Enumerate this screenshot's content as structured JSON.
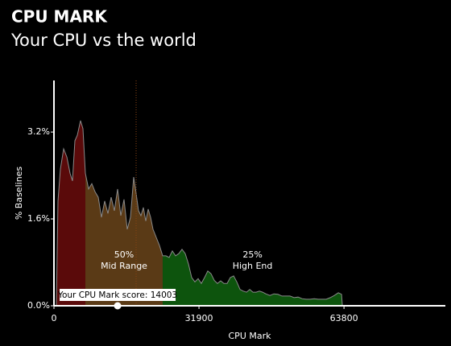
{
  "chart_data": {
    "type": "area",
    "title": "CPU MARK",
    "subtitle": "Your CPU vs the world",
    "x_label": "CPU Mark",
    "y_label": "% Baselines",
    "x": [
      532,
      886,
      1418,
      2126,
      2835,
      3544,
      4076,
      4607,
      5139,
      5848,
      6379,
      6911,
      7620,
      8328,
      9037,
      9746,
      10455,
      11164,
      11872,
      12581,
      13290,
      13999,
      14708,
      15416,
      16125,
      16834,
      17543,
      18074,
      18606,
      19138,
      19669,
      20201,
      20732,
      21264,
      21796,
      22504,
      23213,
      23922,
      24631,
      25340,
      26048,
      26757,
      27466,
      28175,
      28884,
      29592,
      30301,
      31010,
      31719,
      32428,
      33136,
      33845,
      34554,
      35263,
      35972,
      36680,
      37389,
      38098,
      38807,
      39516,
      40224,
      40933,
      41642,
      42351,
      43060,
      43768,
      44477,
      45186,
      45895,
      46604,
      47490,
      48376,
      49262,
      50148,
      51034,
      51920,
      52806,
      53692,
      54578,
      55464,
      56350,
      57236,
      58122,
      59008,
      59894,
      60780,
      61666,
      62552,
      63260,
      63438
    ],
    "values": [
      0,
      1.93,
      2.52,
      2.89,
      2.74,
      2.44,
      2.3,
      3.04,
      3.14,
      3.41,
      3.26,
      2.44,
      2.15,
      2.25,
      2.1,
      2.0,
      1.63,
      1.93,
      1.7,
      2.0,
      1.75,
      2.15,
      1.66,
      1.96,
      1.41,
      1.63,
      2.37,
      2.07,
      1.75,
      1.66,
      1.81,
      1.56,
      1.78,
      1.63,
      1.41,
      1.26,
      1.11,
      0.92,
      0.92,
      0.89,
      1.01,
      0.92,
      0.96,
      1.04,
      0.96,
      0.77,
      0.52,
      0.44,
      0.5,
      0.41,
      0.52,
      0.64,
      0.59,
      0.47,
      0.41,
      0.46,
      0.41,
      0.41,
      0.52,
      0.55,
      0.44,
      0.3,
      0.27,
      0.25,
      0.3,
      0.25,
      0.25,
      0.27,
      0.25,
      0.22,
      0.19,
      0.22,
      0.21,
      0.18,
      0.18,
      0.18,
      0.15,
      0.16,
      0.13,
      0.12,
      0.12,
      0.13,
      0.12,
      0.12,
      0.12,
      0.15,
      0.19,
      0.24,
      0.21,
      0
    ],
    "line_color": "#8a8a8a",
    "regions": [
      {
        "from": 0,
        "to": 6911,
        "color": "#5a0a0a"
      },
      {
        "from": 6911,
        "to": 23922,
        "color": "#5a3a16",
        "share": "50%",
        "label": "Mid Range"
      },
      {
        "from": 23922,
        "to": 63438,
        "color": "#0d540d",
        "share": "25%",
        "label": "High End"
      }
    ],
    "reference_line": {
      "x": 18074,
      "color": "#8b4513"
    },
    "score": {
      "value": 14003,
      "label": "Your CPU Mark score: 14003"
    },
    "xlim": [
      0,
      86100
    ],
    "ylim": [
      0,
      4.15
    ],
    "xticks": [
      0,
      31900,
      63800
    ],
    "yticks": [
      {
        "value": 0,
        "label": "0.0%"
      },
      {
        "value": 1.6,
        "label": "1.6%"
      },
      {
        "value": 3.2,
        "label": "3.2%"
      }
    ]
  }
}
